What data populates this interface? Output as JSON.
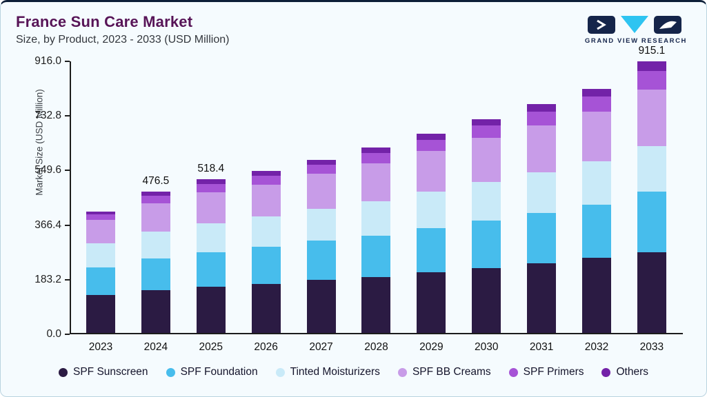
{
  "header": {
    "title": "France Sun Care Market",
    "subtitle": "Size, by Product, 2023 - 2033 (USD Million)",
    "brand_name": "GRAND VIEW RESEARCH"
  },
  "chart_data": {
    "type": "bar",
    "stacked": true,
    "title": "France Sun Care Market Size, by Product, 2023 - 2033 (USD Million)",
    "xlabel": "",
    "ylabel": "Market Size (USD Million)",
    "ylim": [
      0,
      916.0
    ],
    "yticks": [
      0.0,
      183.2,
      366.4,
      549.6,
      732.8,
      916.0
    ],
    "ytick_labels": [
      "0.0",
      "183.2",
      "366.4",
      "549.6",
      "732.8",
      "916.0"
    ],
    "grid": false,
    "legend_position": "bottom",
    "categories": [
      "2023",
      "2024",
      "2025",
      "2026",
      "2027",
      "2028",
      "2029",
      "2030",
      "2031",
      "2032",
      "2033"
    ],
    "series": [
      {
        "name": "SPF Sunscreen",
        "color": "#2b1b43",
        "values": [
          127,
          145,
          156,
          166,
          179,
          188,
          204,
          219,
          234,
          253,
          273
        ]
      },
      {
        "name": "SPF Foundation",
        "color": "#47bdec",
        "values": [
          94,
          106,
          115,
          124,
          132,
          141,
          150,
          160,
          170,
          180,
          203
        ]
      },
      {
        "name": "Tinted Moisturizers",
        "color": "#c9eaf8",
        "values": [
          81,
          91,
          98,
          102,
          108,
          115,
          122,
          130,
          137,
          145,
          155
        ]
      },
      {
        "name": "SPF BB Creams",
        "color": "#c89ce8",
        "values": [
          80,
          95,
          106,
          109,
          117,
          127,
          138,
          148,
          159,
          169,
          190
        ]
      },
      {
        "name": "SPF Primers",
        "color": "#a653d6",
        "values": [
          19,
          26,
          28,
          29,
          31,
          35,
          38,
          43,
          47,
          50,
          62
        ]
      },
      {
        "name": "Others",
        "color": "#7322a8",
        "values": [
          9,
          13,
          15,
          16,
          17,
          19,
          20,
          22,
          24,
          26,
          32
        ]
      }
    ],
    "totals": [
      410.0,
      476.5,
      518.4,
      546.0,
      584.0,
      625.0,
      672.0,
      722.0,
      771.0,
      823.0,
      915.1
    ],
    "total_labels": [
      "",
      "476.5",
      "518.4",
      "",
      "",
      "",
      "",
      "",
      "",
      "",
      "915.1"
    ]
  }
}
